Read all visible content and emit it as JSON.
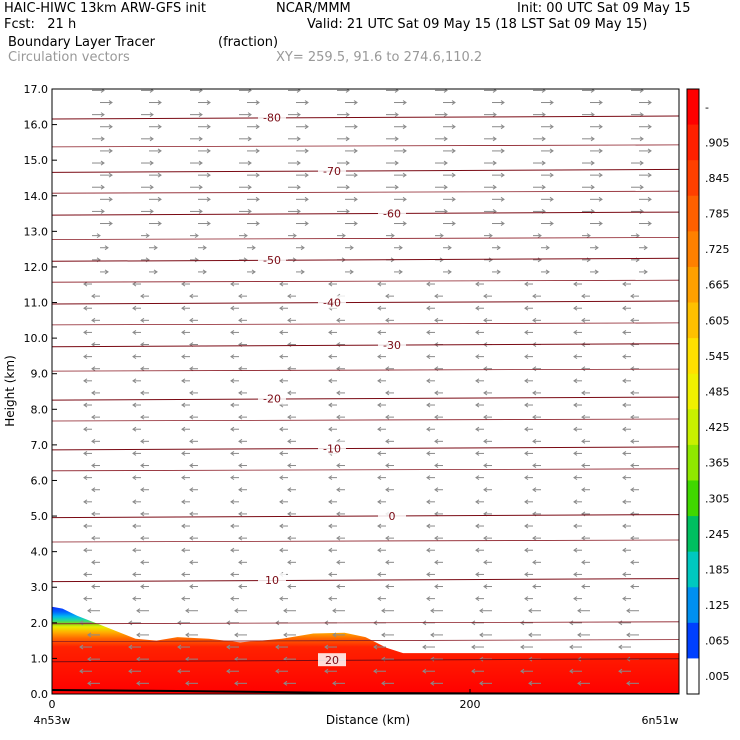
{
  "header": {
    "line1_left": "HAIC-HIWC 13km ARW-GFS init",
    "line1_mid": "NCAR/MMM",
    "line1_right": "Init: 00 UTC Sat 09 May 15",
    "line2_left": "Fcst:   21 h",
    "line2_right": "Valid: 21 UTC Sat 09 May 15 (18 LST Sat 09 May 15)",
    "line3_left": "Boundary Layer Tracer",
    "line3_mid": "(fraction)",
    "line4_left": "Circulation vectors",
    "line4_mid": "XY= 259.5, 91.6 to 274.6,110.2"
  },
  "chart_data": {
    "type": "heatmap",
    "title": "Boundary Layer Tracer",
    "units": "(fraction)",
    "overlay": "Circulation vectors",
    "xlabel": "Distance (km)",
    "ylabel": "Height (km)",
    "xlim": [
      0,
      300
    ],
    "ylim": [
      0.0,
      17.0
    ],
    "x_ticks": [
      0,
      200
    ],
    "x_end_labels": {
      "left": "4n53w",
      "right": "6n51w"
    },
    "y_ticks": [
      "0.0",
      "1.0",
      "2.0",
      "3.0",
      "4.0",
      "5.0",
      "6.0",
      "7.0",
      "8.0",
      "9.0",
      "10.0",
      "11.0",
      "12.0",
      "13.0",
      "14.0",
      "15.0",
      "16.0",
      "17.0"
    ],
    "boundary_layer_top_km": {
      "x": [
        0,
        5,
        12,
        25,
        40,
        50,
        60,
        75,
        90,
        110,
        125,
        140,
        150,
        160,
        168,
        180,
        200,
        230,
        260,
        280,
        300
      ],
      "y": [
        2.45,
        2.4,
        2.2,
        1.9,
        1.55,
        1.5,
        1.6,
        1.55,
        1.45,
        1.55,
        1.7,
        1.72,
        1.6,
        1.3,
        1.15,
        1.15,
        1.15,
        1.15,
        1.15,
        1.15,
        1.15
      ]
    },
    "temperature_contours_c": [
      {
        "label": "-80",
        "km": 16.2
      },
      {
        "label": "-70",
        "km": 14.7
      },
      {
        "label": "-60",
        "km": 13.5
      },
      {
        "label": "-50",
        "km": 12.2
      },
      {
        "label": "-40",
        "km": 11.0
      },
      {
        "label": "-30",
        "km": 9.8
      },
      {
        "label": "-20",
        "km": 8.3
      },
      {
        "label": "-10",
        "km": 6.9
      },
      {
        "label": "0",
        "km": 5.0
      },
      {
        "label": "10",
        "km": 3.2
      },
      {
        "label": "20",
        "km": 0.95
      }
    ],
    "colorbar": {
      "labels": [
        "-",
        ".905",
        ".845",
        ".785",
        ".725",
        ".665",
        ".605",
        ".545",
        ".485",
        ".425",
        ".365",
        ".305",
        ".245",
        ".185",
        ".125",
        ".065",
        ".005"
      ],
      "colors": [
        "#ff0000",
        "#ff2000",
        "#ff4000",
        "#ff6000",
        "#ff8000",
        "#ffa000",
        "#ffc000",
        "#ffe000",
        "#f0f000",
        "#c8f000",
        "#90e800",
        "#40d800",
        "#00c060",
        "#00c8c0",
        "#0090f0",
        "#0040ff",
        "#ffffff"
      ]
    }
  }
}
